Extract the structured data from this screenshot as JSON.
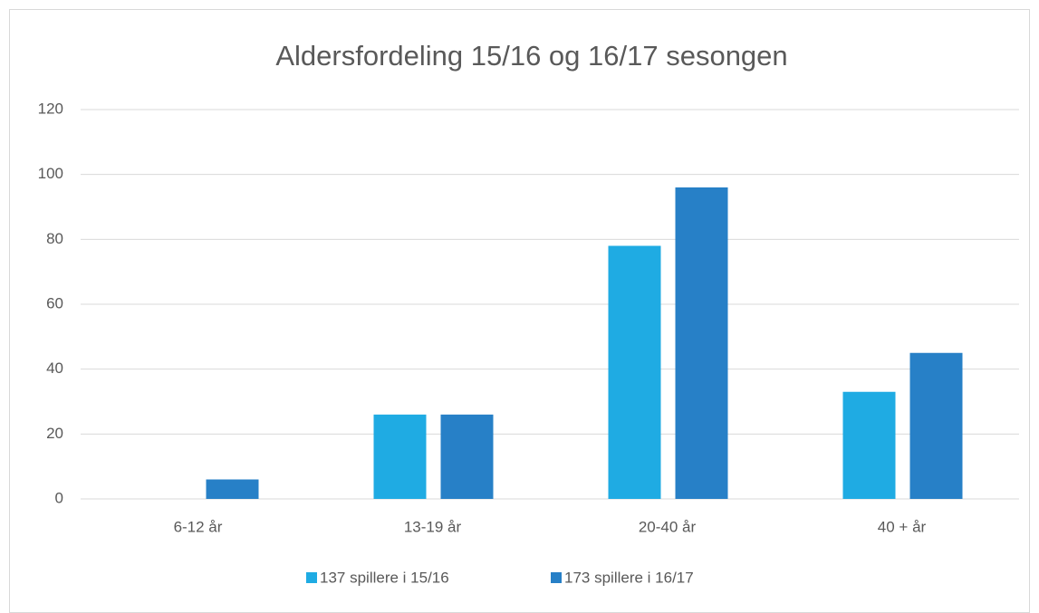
{
  "chart_data": {
    "type": "bar",
    "title": "Aldersfordeling 15/16 og 16/17 sesongen",
    "categories": [
      "6-12 år",
      "13-19 år",
      "20-40 år",
      "40 + år"
    ],
    "series": [
      {
        "name": "137 spillere i 15/16",
        "color": "#1fabe3",
        "values": [
          0,
          26,
          78,
          33
        ]
      },
      {
        "name": "173 spillere i 16/17",
        "color": "#2780c7",
        "values": [
          6,
          26,
          96,
          45
        ]
      }
    ],
    "ylim": [
      0,
      120
    ],
    "yticks": [
      0,
      20,
      40,
      60,
      80,
      100,
      120
    ],
    "grid": true,
    "legend": "bottom"
  }
}
